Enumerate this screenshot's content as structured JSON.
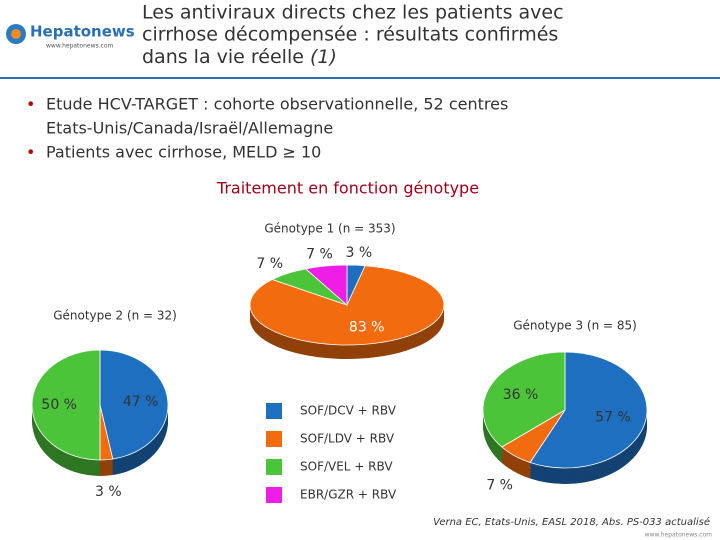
{
  "header": {
    "logo": "Hepatonews",
    "logo_url": "www.hepatonews.com",
    "title": [
      "Les antiviraux directs chez les patients avec",
      "cirrhose décompensée : résultats confirmés",
      "dans la vie réelle"
    ],
    "title_note": "(1)"
  },
  "bullets": [
    [
      "Etude HCV-TARGET : cohorte observationnelle, 52 centres",
      "Etats-Unis/Canada/Israël/Allemagne"
    ],
    [
      "Patients avec cirrhose, MELD ≥ 10"
    ]
  ],
  "section_title": "Traitement en fonction génotype",
  "chart_data": [
    {
      "type": "pie",
      "title": "Génotype 1 (n = 353)",
      "categories": [
        "SOF/DCV + RBV",
        "SOF/LDV + RBV",
        "SOF/VEL + RBV",
        "EBR/GZR + RBV"
      ],
      "colors": [
        "#1f6fc0",
        "#f26b0f",
        "#4cc43a",
        "#ee1ee6"
      ],
      "values": [
        3,
        83,
        7,
        7
      ],
      "value_labels": [
        "3 %",
        "83 %",
        "7 %",
        "7 %"
      ]
    },
    {
      "type": "pie",
      "title": "Génotype 2 (n = 32)",
      "categories": [
        "SOF/DCV + RBV",
        "SOF/LDV + RBV",
        "SOF/VEL + RBV"
      ],
      "colors": [
        "#1f6fc0",
        "#f26b0f",
        "#4cc43a"
      ],
      "values": [
        47,
        3,
        50
      ],
      "value_labels": [
        "47 %",
        "3 %",
        "50 %"
      ]
    },
    {
      "type": "pie",
      "title": "Génotype 3 (n = 85)",
      "categories": [
        "SOF/DCV + RBV",
        "SOF/LDV + RBV",
        "SOF/VEL + RBV"
      ],
      "colors": [
        "#1f6fc0",
        "#f26b0f",
        "#4cc43a"
      ],
      "values": [
        57,
        7,
        36
      ],
      "value_labels": [
        "57 %",
        "7 %",
        "36 %"
      ]
    }
  ],
  "citation": "Verna EC, Etats-Unis, EASL 2018, Abs. PS-033 actualisé",
  "footer_url": "www.hepatonews.com"
}
